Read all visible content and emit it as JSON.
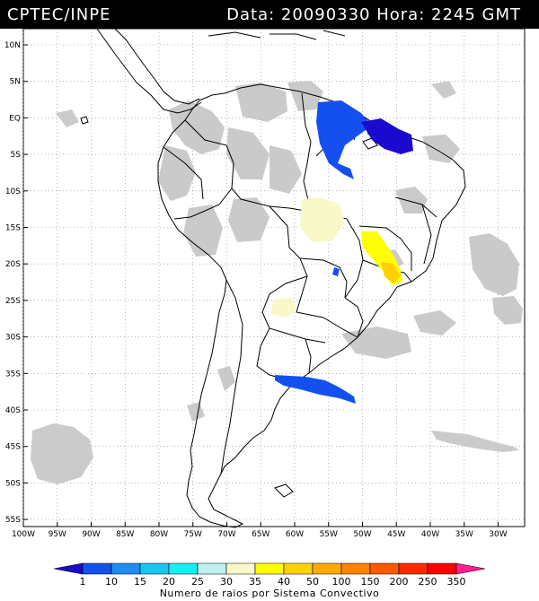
{
  "header": {
    "source": "CPTEC/INPE",
    "timestamp": "Data: 20090330 Hora: 2245 GMT"
  },
  "map": {
    "lat_labels": [
      "10N",
      "5N",
      "EQ",
      "5S",
      "10S",
      "15S",
      "20S",
      "25S",
      "30S",
      "35S",
      "40S",
      "45S",
      "50S",
      "55S"
    ],
    "lon_labels": [
      "100W",
      "95W",
      "90W",
      "85W",
      "80W",
      "75W",
      "70W",
      "65W",
      "60W",
      "55W",
      "50W",
      "45W",
      "40W",
      "35W",
      "30W"
    ],
    "gridlines": "dotted",
    "cloud_color": "#c8c8c8",
    "land_outline_color": "#000000"
  },
  "legend": {
    "values": [
      "1",
      "10",
      "15",
      "20",
      "25",
      "30",
      "35",
      "40",
      "50",
      "100",
      "150",
      "200",
      "250",
      "350"
    ],
    "colors": [
      "#1a0ad0",
      "#1450f0",
      "#1e8cf0",
      "#14c8f0",
      "#14f0f0",
      "#bef0ef",
      "#f8f8c8",
      "#ffff00",
      "#ffd200",
      "#ffaa00",
      "#ff8200",
      "#ff5a00",
      "#ff2800",
      "#ff0000",
      "#ff1e96"
    ],
    "title": "Numero de raios por Sistema Convectivo"
  }
}
